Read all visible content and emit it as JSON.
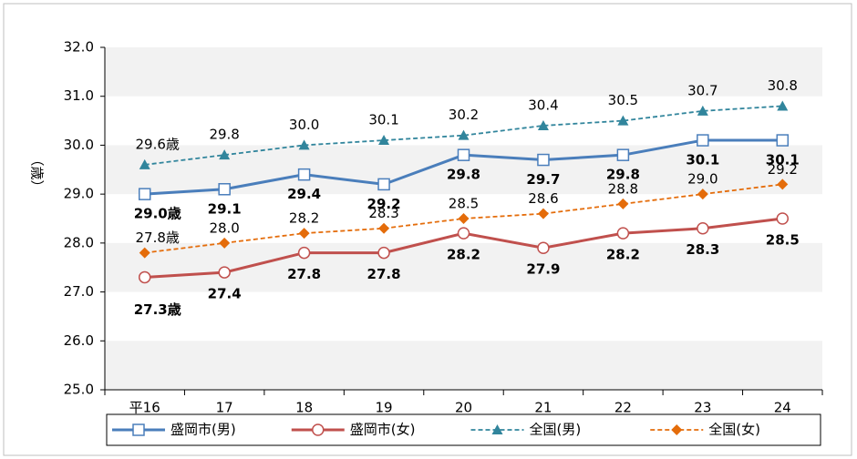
{
  "chart_data": {
    "type": "line",
    "y_label": "（歳）",
    "categories": [
      "平16",
      "17",
      "18",
      "19",
      "20",
      "21",
      "22",
      "23",
      "24"
    ],
    "series": [
      {
        "name": "盛岡市(男)",
        "color": "#4a7ebb",
        "marker": "square",
        "dashed": false,
        "bold_labels": true,
        "values": [
          29.0,
          29.1,
          29.4,
          29.2,
          29.8,
          29.7,
          29.8,
          30.1,
          30.1
        ],
        "value_labels": [
          "29.0歳",
          "29.1",
          "29.4",
          "29.2",
          "29.8",
          "29.7",
          "29.8",
          "30.1",
          "30.1"
        ]
      },
      {
        "name": "盛岡市(女)",
        "color": "#c0504d",
        "marker": "circle",
        "dashed": false,
        "bold_labels": true,
        "values": [
          27.3,
          27.4,
          27.8,
          27.8,
          28.2,
          27.9,
          28.2,
          28.3,
          28.5
        ],
        "value_labels": [
          "27.3歳",
          "27.4",
          "27.8",
          "27.8",
          "28.2",
          "27.9",
          "28.2",
          "28.3",
          "28.5"
        ]
      },
      {
        "name": "全国(男)",
        "color": "#31859c",
        "marker": "triangle",
        "dashed": true,
        "bold_labels": false,
        "values": [
          29.6,
          29.8,
          30.0,
          30.1,
          30.2,
          30.4,
          30.5,
          30.7,
          30.8
        ],
        "value_labels": [
          "29.6歳",
          "29.8",
          "30.0",
          "30.1",
          "30.2",
          "30.4",
          "30.5",
          "30.7",
          "30.8"
        ]
      },
      {
        "name": "全国(女)",
        "color": "#e46c0a",
        "marker": "diamond",
        "dashed": true,
        "bold_labels": false,
        "values": [
          27.8,
          28.0,
          28.2,
          28.3,
          28.5,
          28.6,
          28.8,
          29.0,
          29.2
        ],
        "value_labels": [
          "27.8歳",
          "28.0",
          "28.2",
          "28.3",
          "28.5",
          "28.6",
          "28.8",
          "29.0",
          "29.2"
        ]
      }
    ],
    "ylim": [
      25,
      32
    ],
    "yticks": [
      {
        "value": 25,
        "label": "25.0"
      },
      {
        "value": 26,
        "label": "26.0"
      },
      {
        "value": 27,
        "label": "27.0"
      },
      {
        "value": 28,
        "label": "28.0"
      },
      {
        "value": 29,
        "label": "29.0"
      },
      {
        "value": 30,
        "label": "30.0"
      },
      {
        "value": 31,
        "label": "31.0"
      },
      {
        "value": 32,
        "label": "32.0"
      }
    ],
    "banded": true,
    "legend": "bottom"
  }
}
